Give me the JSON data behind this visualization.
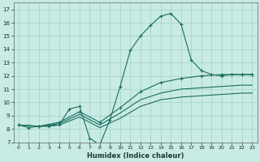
{
  "xlabel": "Humidex (Indice chaleur)",
  "xlim": [
    -0.5,
    23.5
  ],
  "ylim": [
    7,
    17.5
  ],
  "xticks": [
    0,
    1,
    2,
    3,
    4,
    5,
    6,
    7,
    8,
    9,
    10,
    11,
    12,
    13,
    14,
    15,
    16,
    17,
    18,
    19,
    20,
    21,
    22,
    23
  ],
  "yticks": [
    7,
    8,
    9,
    10,
    11,
    12,
    13,
    14,
    15,
    16,
    17
  ],
  "bg_color": "#c8ebe4",
  "grid_color": "#a8d4cc",
  "line_color": "#1a6e5e",
  "line1_x": [
    0,
    1,
    2,
    3,
    4,
    5,
    6,
    7,
    8,
    9,
    10,
    11,
    12,
    13,
    14,
    15,
    16,
    17,
    18,
    19,
    20,
    21,
    22,
    23
  ],
  "line1_y": [
    8.3,
    8.1,
    8.2,
    8.2,
    8.3,
    9.5,
    9.7,
    7.3,
    6.8,
    8.7,
    11.2,
    13.9,
    15.0,
    15.8,
    16.5,
    16.7,
    15.9,
    13.2,
    12.4,
    12.1,
    12.0,
    12.1,
    12.1,
    12.1
  ],
  "line2_x": [
    0,
    2,
    4,
    6,
    8,
    10,
    12,
    14,
    16,
    18,
    20,
    22,
    23
  ],
  "line2_y": [
    8.3,
    8.2,
    8.5,
    9.3,
    8.5,
    9.6,
    10.8,
    11.5,
    11.8,
    12.0,
    12.1,
    12.1,
    12.1
  ],
  "line3_x": [
    0,
    2,
    4,
    6,
    8,
    10,
    12,
    14,
    16,
    18,
    20,
    22,
    23
  ],
  "line3_y": [
    8.3,
    8.2,
    8.4,
    9.1,
    8.3,
    9.2,
    10.2,
    10.7,
    11.0,
    11.1,
    11.2,
    11.3,
    11.3
  ],
  "line4_x": [
    0,
    2,
    4,
    6,
    8,
    10,
    12,
    14,
    16,
    18,
    20,
    22,
    23
  ],
  "line4_y": [
    8.3,
    8.2,
    8.3,
    8.9,
    8.1,
    8.8,
    9.7,
    10.2,
    10.4,
    10.5,
    10.6,
    10.7,
    10.7
  ]
}
